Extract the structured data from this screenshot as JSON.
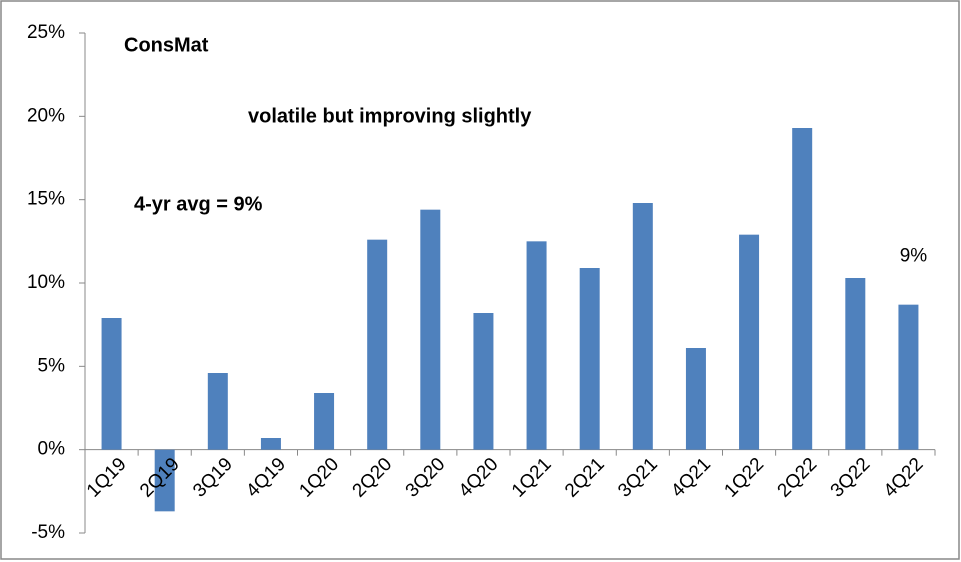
{
  "chart_data": {
    "type": "bar",
    "title": "ConsMat",
    "annotations": [
      "volatile but improving slightly",
      "4-yr avg = 9%"
    ],
    "categories": [
      "1Q19",
      "2Q19",
      "3Q19",
      "4Q19",
      "1Q20",
      "2Q20",
      "3Q20",
      "4Q20",
      "1Q21",
      "2Q21",
      "3Q21",
      "4Q21",
      "1Q22",
      "2Q22",
      "3Q22",
      "4Q22"
    ],
    "values": [
      7.9,
      -3.7,
      4.6,
      0.7,
      3.4,
      12.6,
      14.4,
      8.2,
      12.5,
      10.9,
      14.8,
      6.1,
      12.9,
      19.3,
      10.3,
      8.7
    ],
    "value_labels": [
      null,
      null,
      null,
      null,
      null,
      null,
      null,
      null,
      null,
      null,
      null,
      null,
      null,
      null,
      null,
      "9%"
    ],
    "color": "#4f81bd",
    "ylim": [
      -5,
      25
    ],
    "yticks": [
      {
        "value": -5,
        "label": "-5%"
      },
      {
        "value": 0,
        "label": "0%"
      },
      {
        "value": 5,
        "label": "5%"
      },
      {
        "value": 10,
        "label": "10%"
      },
      {
        "value": 15,
        "label": "15%"
      },
      {
        "value": 20,
        "label": "20%"
      },
      {
        "value": 25,
        "label": "25%"
      }
    ],
    "grid": false
  }
}
